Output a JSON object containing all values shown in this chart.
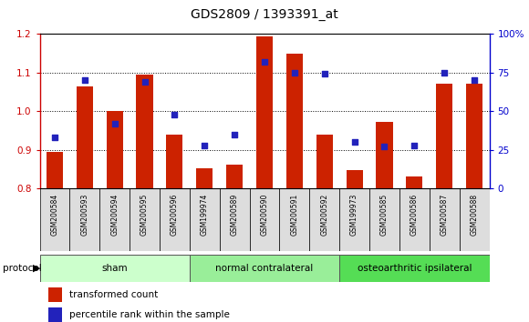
{
  "title": "GDS2809 / 1393391_at",
  "samples": [
    "GSM200584",
    "GSM200593",
    "GSM200594",
    "GSM200595",
    "GSM200596",
    "GSM199974",
    "GSM200589",
    "GSM200590",
    "GSM200591",
    "GSM200592",
    "GSM199973",
    "GSM200585",
    "GSM200586",
    "GSM200587",
    "GSM200588"
  ],
  "red_values": [
    0.895,
    1.063,
    1.0,
    1.095,
    0.94,
    0.852,
    0.862,
    1.193,
    1.148,
    0.94,
    0.847,
    0.972,
    0.83,
    1.072,
    1.07
  ],
  "blue_pct": [
    33,
    70,
    42,
    69,
    48,
    28,
    35,
    82,
    75,
    74,
    30,
    27,
    28,
    75,
    70
  ],
  "groups": [
    {
      "label": "sham",
      "start": 0,
      "end": 5,
      "color": "#ccffcc"
    },
    {
      "label": "normal contralateral",
      "start": 5,
      "end": 10,
      "color": "#99ee99"
    },
    {
      "label": "osteoarthritic ipsilateral",
      "start": 10,
      "end": 15,
      "color": "#55dd55"
    }
  ],
  "ylim_left": [
    0.8,
    1.2
  ],
  "ylim_right": [
    0,
    100
  ],
  "bar_color": "#cc2200",
  "dot_color": "#2222bb",
  "bar_bottom": 0.8,
  "grid_lines": [
    0.9,
    1.0,
    1.1
  ],
  "background_color": "#ffffff",
  "plot_bg_color": "#ffffff",
  "left_spine_color": "#cc0000",
  "right_spine_color": "#0000cc"
}
